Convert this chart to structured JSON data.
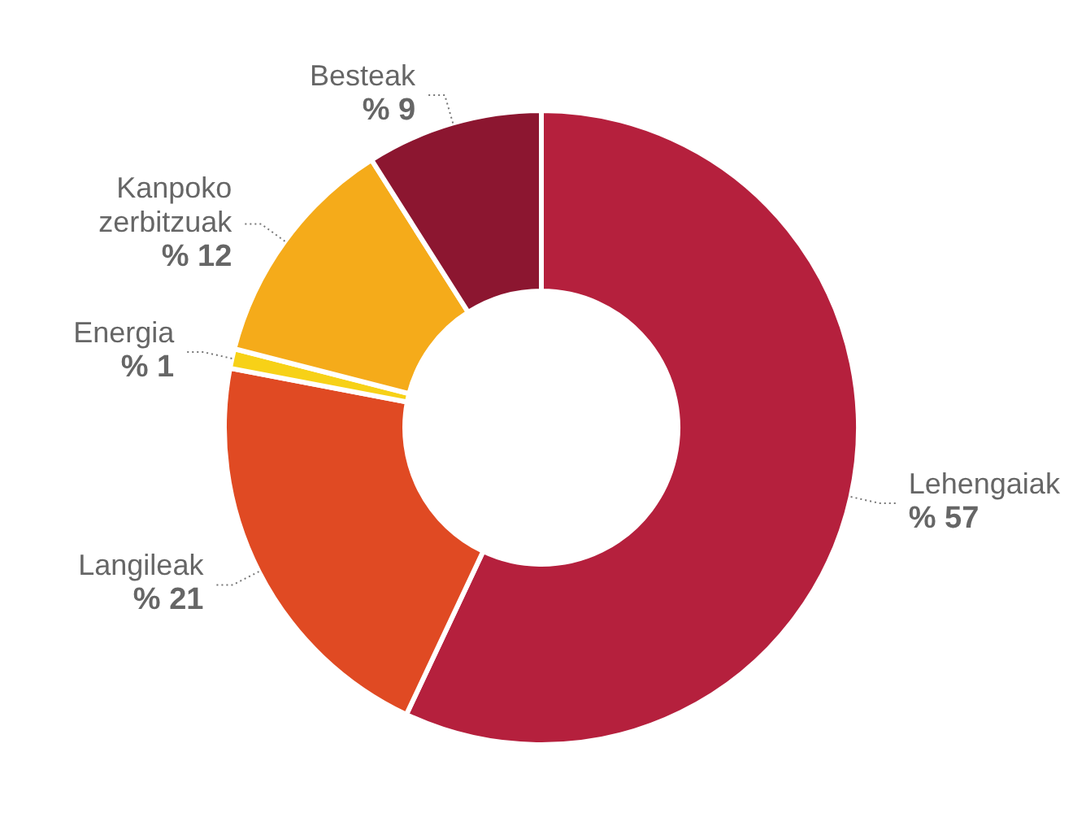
{
  "chart_data": {
    "type": "donut",
    "categories": [
      "Lehengaiak",
      "Langileak",
      "Energia",
      "Kanpoko zerbitzuak",
      "Besteak"
    ],
    "values": [
      57,
      21,
      1,
      12,
      9
    ],
    "colors": [
      "#b5203d",
      "#e04a23",
      "#f7d117",
      "#f5ab1a",
      "#8c1630"
    ],
    "value_labels": [
      "% 57",
      "% 21",
      "% 1",
      "% 12",
      "% 9"
    ]
  }
}
